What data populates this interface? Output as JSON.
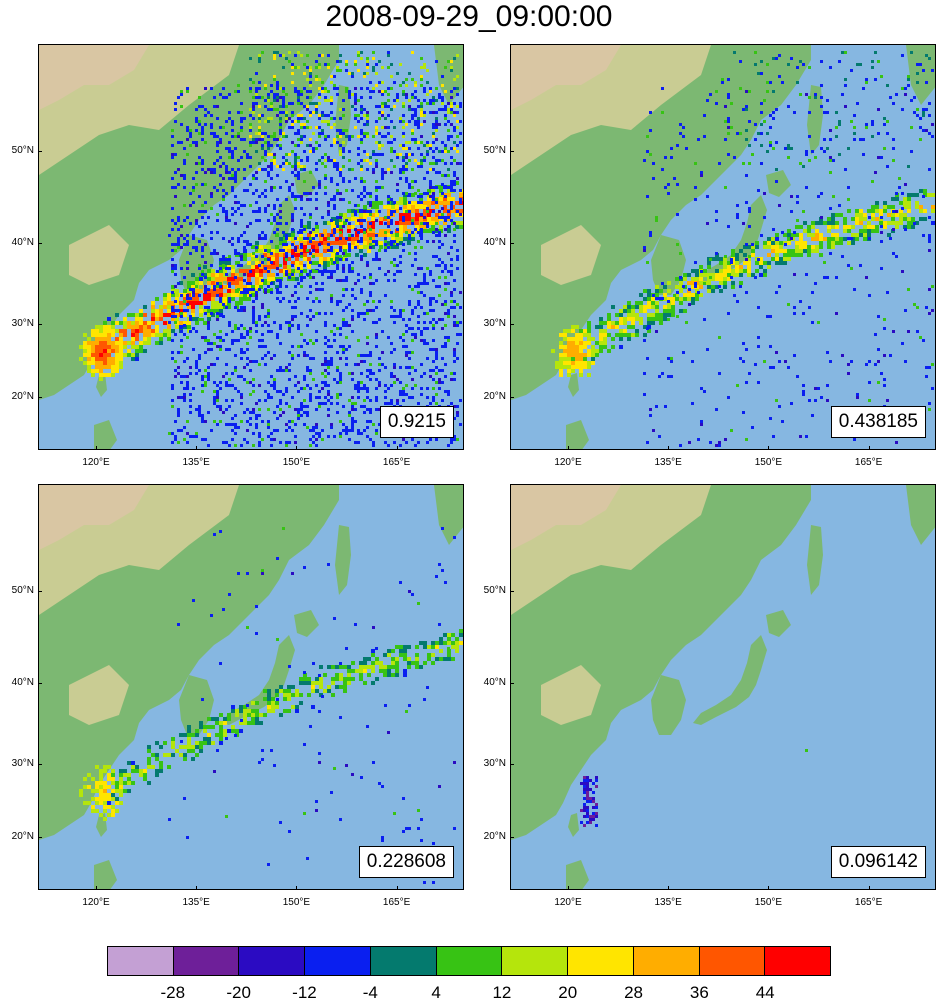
{
  "title": "2008-09-29_09:00:00",
  "lat_labels": [
    "50°N",
    "40°N",
    "30°N",
    "20°N"
  ],
  "lat_values": [
    50,
    40,
    30,
    20
  ],
  "lon_labels": [
    "120°E",
    "135°E",
    "150°E",
    "165°E"
  ],
  "lon_values": [
    120,
    135,
    150,
    165
  ],
  "panels": [
    {
      "value": "0.9215",
      "intensity": 1.0
    },
    {
      "value": "0.438185",
      "intensity": 0.55
    },
    {
      "value": "0.228608",
      "intensity": 0.35
    },
    {
      "value": "0.096142",
      "intensity": 0.08
    }
  ],
  "colorbar": {
    "colors": [
      "#c4a0d4",
      "#6e1f99",
      "#2b0bc2",
      "#0a1ff0",
      "#047a6e",
      "#37c314",
      "#b5e50c",
      "#ffe500",
      "#ffad00",
      "#ff5600",
      "#ff0000"
    ],
    "labels": [
      "-28",
      "-20",
      "-12",
      "-4",
      "4",
      "12",
      "20",
      "28",
      "36",
      "44"
    ]
  },
  "colors": {
    "ocean": "#86b7e1",
    "land_low": "#7cb872",
    "land_mid": "#c9cc93",
    "land_high": "#d9c6a3"
  }
}
